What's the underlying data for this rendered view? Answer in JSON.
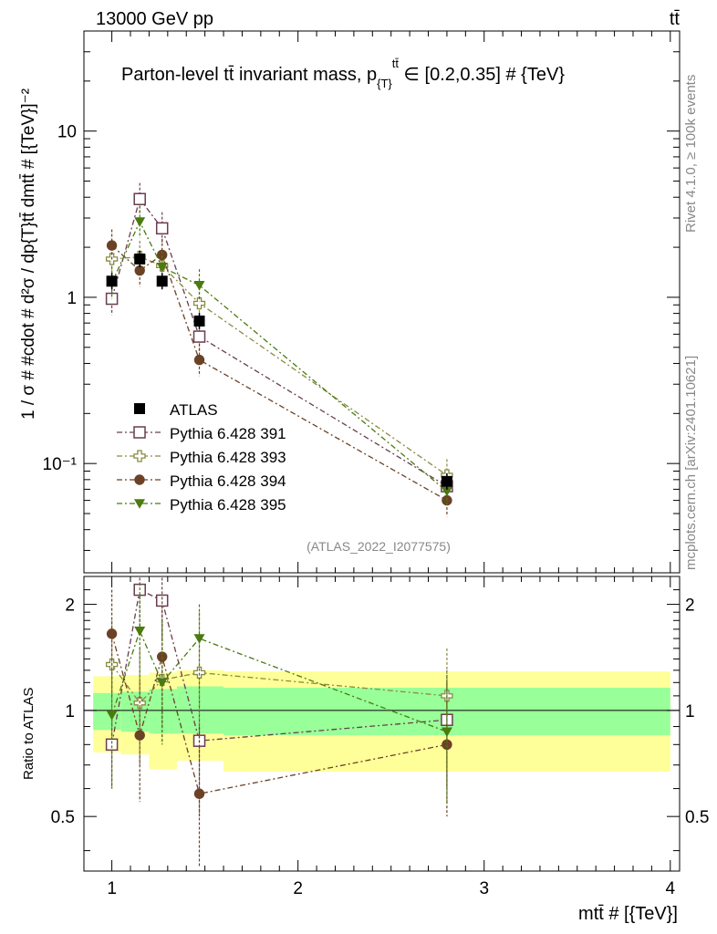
{
  "header": {
    "left": "13000 GeV pp",
    "right": "tt̄"
  },
  "side_labels": {
    "rivet": "Rivet 4.1.0, ≥ 100k events",
    "mcplots": "mcplots.cern.ch [arXiv:2401.10621]"
  },
  "chart_data": {
    "type": "scatter",
    "title": "Parton-level t̅t invariant mass, p{T}tt̄ ∈ [0.2,0.35] # {TeV}",
    "title_parts": {
      "main": "Parton-level tt̄ invariant mass, p",
      "sub": "{T}",
      "sup": "tt̄",
      "tail": " ∈ [0.2,0.35] # {TeV}"
    },
    "ylabel": "1 / σ # #cdot # d²σ / dp{T}tt̄ dmtt̄ # [{TeV}]⁻²",
    "ratio_ylabel": "Ratio to ATLAS",
    "xlabel": "mtt̄ # [{TeV}]",
    "watermark": "(ATLAS_2022_I2077575)",
    "xlim": [
      0.85,
      4.05
    ],
    "ylim_main": [
      0.022,
      40
    ],
    "ylim_ratio": [
      0.35,
      2.4
    ],
    "x_ticks": [
      {
        "value": 1,
        "label": "1"
      },
      {
        "value": 2,
        "label": "2"
      },
      {
        "value": 3,
        "label": "3"
      },
      {
        "value": 4,
        "label": "4"
      }
    ],
    "y_ticks_main": [
      {
        "value": 0.1,
        "label": "10⁻¹"
      },
      {
        "value": 1,
        "label": "1"
      },
      {
        "value": 10,
        "label": "10"
      }
    ],
    "y_ticks_ratio": [
      {
        "value": 0.5,
        "label": "0.5"
      },
      {
        "value": 1,
        "label": "1"
      },
      {
        "value": 2,
        "label": "2"
      }
    ],
    "bins": [
      {
        "lo": 0.9,
        "hi": 1.05
      },
      {
        "lo": 1.05,
        "hi": 1.2
      },
      {
        "lo": 1.2,
        "hi": 1.35
      },
      {
        "lo": 1.35,
        "hi": 1.6
      },
      {
        "lo": 1.6,
        "hi": 4.0
      }
    ],
    "x": [
      1.0,
      1.15,
      1.27,
      1.47,
      2.8
    ],
    "data": {
      "name": "ATLAS",
      "values": [
        1.25,
        1.7,
        1.25,
        0.72,
        0.078
      ],
      "band_green": [
        [
          0.88,
          1.12
        ],
        [
          0.87,
          1.13
        ],
        [
          0.86,
          1.15
        ],
        [
          0.86,
          1.17
        ],
        [
          0.85,
          1.16
        ]
      ],
      "band_yellow": [
        [
          0.76,
          1.25
        ],
        [
          0.75,
          1.26
        ],
        [
          0.68,
          1.28
        ],
        [
          0.72,
          1.3
        ],
        [
          0.67,
          1.29
        ]
      ]
    },
    "series": [
      {
        "name": "Pythia 6.428 391",
        "color": "#6a3d50",
        "marker": "open-square",
        "values": [
          0.98,
          3.9,
          2.6,
          0.58,
          0.073
        ],
        "ratio": [
          0.8,
          2.2,
          2.05,
          0.82,
          0.94
        ],
        "ratio_err": [
          [
            0.6,
            1.0
          ],
          [
            1.7,
            2.6
          ],
          [
            1.6,
            2.5
          ],
          [
            0.5,
            1.1
          ],
          [
            0.6,
            1.3
          ]
        ]
      },
      {
        "name": "Pythia 6.428 393",
        "color": "#8a8a40",
        "marker": "open-cross",
        "values": [
          1.7,
          1.75,
          1.55,
          0.92,
          0.085
        ],
        "ratio": [
          1.35,
          1.05,
          1.22,
          1.28,
          1.1
        ],
        "ratio_err": [
          [
            0.9,
            1.8
          ],
          [
            0.7,
            1.5
          ],
          [
            0.8,
            1.7
          ],
          [
            0.8,
            1.9
          ],
          [
            0.7,
            1.5
          ]
        ]
      },
      {
        "name": "Pythia 6.428 394",
        "color": "#6b4226",
        "marker": "filled-circle",
        "values": [
          2.05,
          1.45,
          1.8,
          0.42,
          0.06
        ],
        "ratio": [
          1.65,
          0.85,
          1.42,
          0.58,
          0.8
        ],
        "ratio_err": [
          [
            1.1,
            2.2
          ],
          [
            0.55,
            1.2
          ],
          [
            0.9,
            2.1
          ],
          [
            0.3,
            0.9
          ],
          [
            0.5,
            1.2
          ]
        ]
      },
      {
        "name": "Pythia 6.428 395",
        "color": "#4a7a10",
        "marker": "filled-triangle-down",
        "values": [
          1.22,
          2.85,
          1.52,
          1.18,
          0.068
        ],
        "ratio": [
          0.97,
          1.68,
          1.2,
          1.6,
          0.87
        ],
        "ratio_err": [
          [
            0.6,
            1.4
          ],
          [
            1.2,
            2.3
          ],
          [
            0.8,
            1.8
          ],
          [
            1.1,
            2.0
          ],
          [
            0.55,
            1.25
          ]
        ]
      }
    ]
  }
}
